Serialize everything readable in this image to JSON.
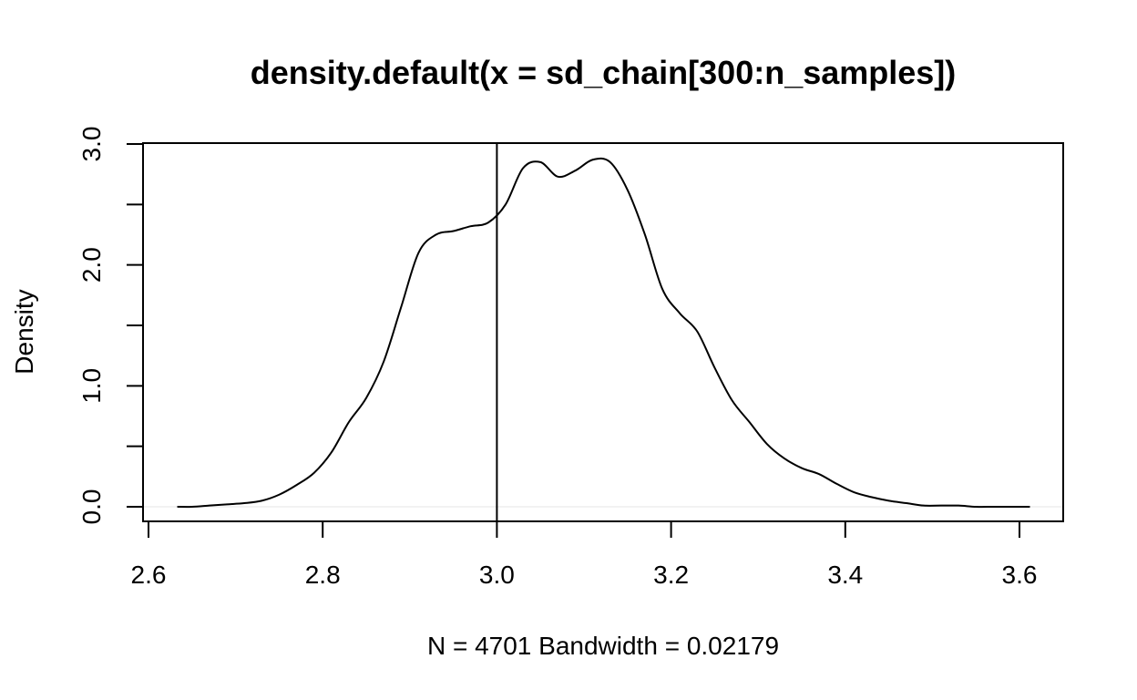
{
  "chart_data": {
    "type": "line",
    "title": "density.default(x = sd_chain[300:n_samples])",
    "xlabel": "N = 4701   Bandwidth = 0.02179",
    "ylabel": "Density",
    "xlim": [
      2.6,
      3.65
    ],
    "ylim": [
      0,
      3.0
    ],
    "x_ticks": [
      2.6,
      2.8,
      3.0,
      3.2,
      3.4,
      3.6
    ],
    "x_tick_labels": [
      "2.6",
      "2.8",
      "3.0",
      "3.2",
      "3.4",
      "3.6"
    ],
    "y_ticks": [
      0,
      0.5,
      1.0,
      1.5,
      2.0,
      2.5,
      3.0
    ],
    "y_tick_labels": [
      "0.0",
      "",
      "1.0",
      "",
      "2.0",
      "",
      "3.0"
    ],
    "vertical_line_x": 3.0,
    "zero_line": true,
    "grid": false,
    "series": [
      {
        "x": [
          2.633,
          2.65,
          2.67,
          2.69,
          2.71,
          2.73,
          2.75,
          2.77,
          2.79,
          2.81,
          2.83,
          2.85,
          2.87,
          2.89,
          2.91,
          2.93,
          2.95,
          2.97,
          2.99,
          3.01,
          3.03,
          3.05,
          3.07,
          3.09,
          3.11,
          3.13,
          3.15,
          3.17,
          3.19,
          3.21,
          3.23,
          3.25,
          3.27,
          3.29,
          3.31,
          3.33,
          3.35,
          3.37,
          3.39,
          3.41,
          3.43,
          3.45,
          3.47,
          3.49,
          3.51,
          3.53,
          3.55,
          3.57,
          3.59,
          3.612
        ],
        "y": [
          0.0,
          0.0,
          0.01,
          0.02,
          0.03,
          0.05,
          0.1,
          0.18,
          0.28,
          0.45,
          0.7,
          0.9,
          1.2,
          1.65,
          2.1,
          2.25,
          2.28,
          2.32,
          2.35,
          2.5,
          2.8,
          2.85,
          2.73,
          2.78,
          2.87,
          2.85,
          2.62,
          2.25,
          1.8,
          1.6,
          1.45,
          1.15,
          0.88,
          0.7,
          0.52,
          0.4,
          0.32,
          0.27,
          0.19,
          0.12,
          0.08,
          0.05,
          0.03,
          0.01,
          0.01,
          0.01,
          0.0,
          0.0,
          0.0,
          0.0
        ]
      }
    ]
  }
}
